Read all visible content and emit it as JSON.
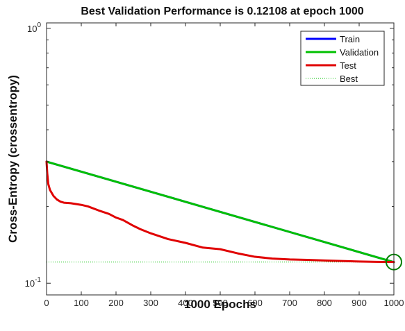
{
  "chart_data": {
    "type": "line",
    "title": "Best Validation Performance is 0.12108 at epoch 1000",
    "xlabel": "1000 Epochs",
    "ylabel": "Cross-Entropy  (crossentropy)",
    "xlim": [
      0,
      1000
    ],
    "ylim": [
      0.09,
      1.05
    ],
    "yscale": "log",
    "xticks": [
      "0",
      "100",
      "200",
      "300",
      "400",
      "500",
      "600",
      "700",
      "800",
      "900",
      "1000"
    ],
    "yticks": [
      {
        "value": 1,
        "base": "10",
        "exp": "0"
      },
      {
        "value": 0.1,
        "base": "10",
        "exp": "-1"
      }
    ],
    "legend_position": "top-right",
    "series": [
      {
        "name": "Train",
        "color": "#0000ff",
        "x": [
          0,
          1000
        ],
        "y": [
          0.3,
          0.121
        ]
      },
      {
        "name": "Validation",
        "color": "#00c000",
        "x": [
          0,
          1000
        ],
        "y": [
          0.3,
          0.121
        ]
      },
      {
        "name": "Test",
        "color": "#e00000",
        "x": [
          0,
          2,
          5,
          10,
          20,
          30,
          40,
          50,
          70,
          100,
          120,
          150,
          180,
          200,
          220,
          250,
          270,
          300,
          350,
          400,
          450,
          500,
          550,
          600,
          650,
          700,
          750,
          800,
          850,
          900,
          950,
          1000
        ],
        "y": [
          0.3,
          0.27,
          0.245,
          0.232,
          0.22,
          0.213,
          0.209,
          0.207,
          0.206,
          0.203,
          0.2,
          0.193,
          0.187,
          0.181,
          0.177,
          0.168,
          0.163,
          0.157,
          0.149,
          0.144,
          0.138,
          0.136,
          0.131,
          0.127,
          0.125,
          0.124,
          0.1235,
          0.1228,
          0.1223,
          0.1217,
          0.1213,
          0.12108
        ]
      }
    ],
    "best": {
      "name": "Best",
      "epoch": 1000,
      "value": 0.12108,
      "color": "#00c000"
    }
  }
}
